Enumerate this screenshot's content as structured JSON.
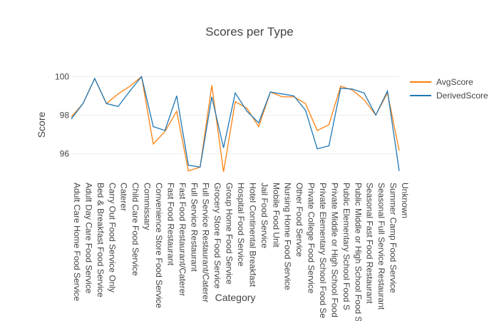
{
  "chart_data": {
    "type": "line",
    "title": "Scores per Type",
    "x_label": "Category",
    "y_label": "Score",
    "categories": [
      "Adult Care Home Food Service",
      "Adult Day Care Food Service",
      "Bed & Breakfast Food Service",
      "Carry Out Food Service Only",
      "Caterer",
      "Child Care Food Service",
      "Commissary",
      "Convenience Store Food Service",
      "Fast Food Restaurant",
      "Fast Food Restaurant/Caterer",
      "Full Service Restaurant",
      "Full Service Restaurant/Caterer",
      "Grocery Store Food Service",
      "Group Home Food Service",
      "Hospital Food Service",
      "Hotel Continental Breakfast",
      "Jail Food Service",
      "Mobile Food Unit",
      "Nursing Home Food Service",
      "Other Food Service",
      "Private College Food Service",
      "Private Elementary School Food Se",
      "Private Middle or High School Food",
      "Public Elementary School Food S",
      "Public Middle or High School Food S",
      "Seasonal Fast Food Restaurant",
      "Seasonal Full Service Restaurant",
      "Summer Camp Food Service",
      "Unknown"
    ],
    "series": [
      {
        "name": "AvgScore",
        "color": "#ff7f0e",
        "values": [
          97.9,
          98.6,
          99.9,
          98.6,
          99.1,
          99.5,
          100,
          96.5,
          97.15,
          98.2,
          95.1,
          95.3,
          99.55,
          95.05,
          98.7,
          98.35,
          97.4,
          99.2,
          98.95,
          98.95,
          98.6,
          97.2,
          97.5,
          99.5,
          99.3,
          98.8,
          98.0,
          99.15,
          96.15
        ]
      },
      {
        "name": "DerivedScore",
        "color": "#1f77b4",
        "values": [
          97.8,
          98.6,
          99.9,
          98.6,
          98.45,
          99.25,
          100,
          97.4,
          97.2,
          99.0,
          95.4,
          95.3,
          98.95,
          96.3,
          99.15,
          98.2,
          97.6,
          99.2,
          99.1,
          99.0,
          98.25,
          96.25,
          96.4,
          99.4,
          99.35,
          99.15,
          98.0,
          99.25,
          95.1
        ]
      }
    ],
    "ylim": [
      94.9,
      100.2
    ],
    "yticks": [
      96,
      98,
      100
    ],
    "grid": true,
    "legend": "top-right"
  }
}
